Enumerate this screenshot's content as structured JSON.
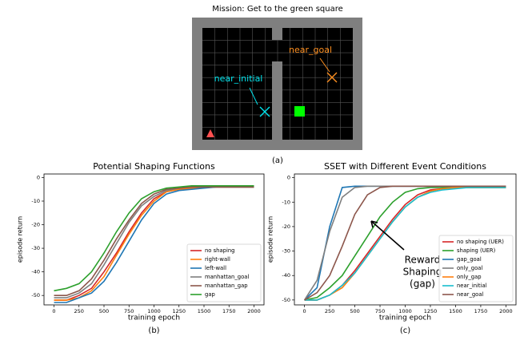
{
  "gridworld": {
    "mission": "Mission: Get to the green square",
    "near_goal": "near_goal",
    "near_initial": "near_initial",
    "caption": "(a)"
  },
  "chart_data": [
    {
      "type": "line",
      "title": "Potential Shaping Functions",
      "xlabel": "training epoch",
      "ylabel": "episode return",
      "caption": "(b)",
      "x": [
        0,
        125,
        250,
        375,
        500,
        625,
        750,
        875,
        1000,
        1125,
        1250,
        1375,
        1500,
        1625,
        1750,
        1875,
        2000
      ],
      "xlim": [
        -100,
        2100
      ],
      "ylim": [
        -54,
        1.5
      ],
      "xticks": [
        0,
        250,
        500,
        750,
        1000,
        1250,
        1500,
        1750,
        2000
      ],
      "yticks": [
        0,
        -10,
        -20,
        -30,
        -40,
        -50
      ],
      "legend": "lower right",
      "series": [
        {
          "name": "no shaping",
          "color": "#d62728",
          "values": [
            -52,
            -52,
            -50,
            -47,
            -40,
            -32,
            -23,
            -15,
            -9,
            -6,
            -5,
            -4.5,
            -4,
            -4,
            -4,
            -4,
            -4
          ]
        },
        {
          "name": "right-wall",
          "color": "#ff7f0e",
          "values": [
            -52,
            -52,
            -51,
            -48,
            -42,
            -33,
            -24,
            -16,
            -10,
            -6,
            -5,
            -4.5,
            -4,
            -4,
            -4,
            -4,
            -4
          ]
        },
        {
          "name": "left-wall",
          "color": "#1f77b4",
          "values": [
            -53,
            -53,
            -51,
            -49,
            -44,
            -36,
            -27,
            -18,
            -11,
            -7,
            -5.5,
            -5,
            -4.5,
            -4,
            -4,
            -4,
            -4
          ]
        },
        {
          "name": "manhattan_goal",
          "color": "#7f7f7f",
          "values": [
            -51,
            -51,
            -49,
            -45,
            -37,
            -28,
            -19,
            -12,
            -8,
            -5.5,
            -4.5,
            -4,
            -4,
            -4,
            -4,
            -4,
            -4
          ]
        },
        {
          "name": "manhattan_gap",
          "color": "#8c564b",
          "values": [
            -50,
            -50,
            -48,
            -43,
            -35,
            -26,
            -18,
            -11,
            -7,
            -5,
            -4.5,
            -4,
            -4,
            -4,
            -4,
            -4,
            -4
          ]
        },
        {
          "name": "gap",
          "color": "#2ca02c",
          "values": [
            -48,
            -47,
            -45,
            -40,
            -32,
            -23,
            -15,
            -9,
            -6,
            -4.5,
            -4,
            -3.5,
            -3.5,
            -3.5,
            -3.5,
            -3.5,
            -3.5
          ]
        }
      ]
    },
    {
      "type": "line",
      "title": "SSET with Different Event Conditions",
      "xlabel": "training epoch",
      "ylabel": "episode return",
      "caption": "(c)",
      "annotation": [
        "Reward",
        "Shaping",
        "(gap)"
      ],
      "x": [
        0,
        125,
        250,
        375,
        500,
        625,
        750,
        875,
        1000,
        1125,
        1250,
        1375,
        1500,
        1625,
        1750,
        1875,
        2000
      ],
      "xlim": [
        -100,
        2100
      ],
      "ylim": [
        -52,
        1.5
      ],
      "xticks": [
        0,
        250,
        500,
        750,
        1000,
        1250,
        1500,
        1750,
        2000
      ],
      "yticks": [
        0,
        -10,
        -20,
        -30,
        -40,
        -50
      ],
      "legend": "lower right",
      "series": [
        {
          "name": "no shaping (UER)",
          "color": "#d62728",
          "values": [
            -50,
            -50,
            -48,
            -44,
            -38,
            -31,
            -24,
            -17,
            -11,
            -7,
            -5,
            -4.5,
            -4,
            -4,
            -4,
            -4,
            -4
          ]
        },
        {
          "name": "shaping (UER)",
          "color": "#2ca02c",
          "values": [
            -50,
            -49,
            -45,
            -40,
            -32,
            -24,
            -16,
            -10,
            -6,
            -4.5,
            -4,
            -4,
            -4,
            -4,
            -4,
            -4,
            -4
          ]
        },
        {
          "name": "gap_goal",
          "color": "#1f77b4",
          "values": [
            -50,
            -45,
            -20,
            -4,
            -3.5,
            -3.5,
            -3.5,
            -3.5,
            -3.5,
            -3.5,
            -3.5,
            -3.5,
            -3.5,
            -3.5,
            -3.5,
            -3.5,
            -3.5
          ]
        },
        {
          "name": "only_goal",
          "color": "#7f7f7f",
          "values": [
            -50,
            -42,
            -22,
            -8,
            -4,
            -3.5,
            -3.5,
            -3.5,
            -3.5,
            -3.5,
            -3.5,
            -3.5,
            -3.5,
            -3.5,
            -3.5,
            -3.5,
            -3.5
          ]
        },
        {
          "name": "only_gap",
          "color": "#ff7f0e",
          "values": [
            -50,
            -50,
            -48,
            -45,
            -39,
            -32,
            -25,
            -18,
            -12,
            -8,
            -5.5,
            -4.5,
            -4,
            -4,
            -4,
            -4,
            -4
          ]
        },
        {
          "name": "near_initial",
          "color": "#17becf",
          "values": [
            -50,
            -50,
            -48,
            -44,
            -39,
            -32,
            -25,
            -18,
            -12,
            -8,
            -6,
            -5,
            -4.5,
            -4,
            -4,
            -4,
            -4
          ]
        },
        {
          "name": "near_goal",
          "color": "#8c564b",
          "values": [
            -50,
            -47,
            -40,
            -28,
            -15,
            -7,
            -4,
            -3.5,
            -3.5,
            -3.5,
            -3.5,
            -3.5,
            -3.5,
            -3.5,
            -3.5,
            -3.5,
            -3.5
          ]
        }
      ]
    }
  ]
}
